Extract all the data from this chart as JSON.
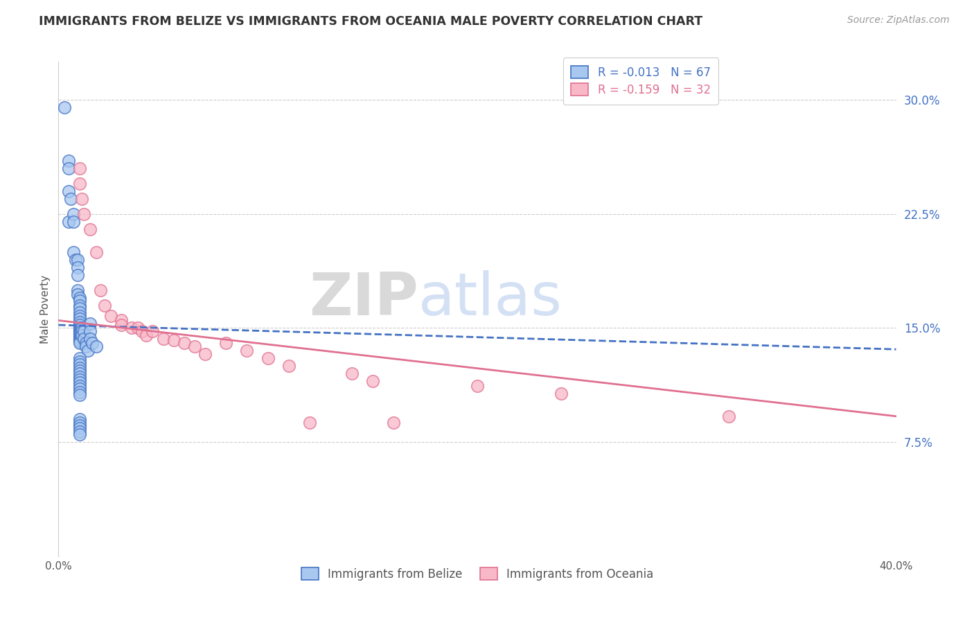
{
  "title": "IMMIGRANTS FROM BELIZE VS IMMIGRANTS FROM OCEANIA MALE POVERTY CORRELATION CHART",
  "source": "Source: ZipAtlas.com",
  "ylabel": "Male Poverty",
  "right_yticks": [
    "30.0%",
    "22.5%",
    "15.0%",
    "7.5%"
  ],
  "right_ytick_vals": [
    0.3,
    0.225,
    0.15,
    0.075
  ],
  "xlim": [
    0.0,
    0.4
  ],
  "ylim": [
    0.0,
    0.325
  ],
  "watermark_zip": "ZIP",
  "watermark_atlas": "atlas",
  "legend_belize_R": "-0.013",
  "legend_belize_N": "67",
  "legend_oceania_R": "-0.159",
  "legend_oceania_N": "32",
  "color_belize_face": "#A8C8F0",
  "color_oceania_face": "#F8B8C8",
  "color_belize_edge": "#4472C4",
  "color_oceania_edge": "#E07090",
  "color_belize_line": "#4472C4",
  "color_oceania_line": "#E07090",
  "color_ytick_right": "#4472C4",
  "color_title": "#333333",
  "color_source": "#999999",
  "belize_x": [
    0.003,
    0.005,
    0.005,
    0.005,
    0.006,
    0.005,
    0.007,
    0.007,
    0.007,
    0.008,
    0.009,
    0.009,
    0.009,
    0.009,
    0.009,
    0.01,
    0.01,
    0.01,
    0.01,
    0.01,
    0.01,
    0.01,
    0.01,
    0.01,
    0.01,
    0.01,
    0.01,
    0.01,
    0.01,
    0.01,
    0.01,
    0.01,
    0.01,
    0.01,
    0.01,
    0.011,
    0.011,
    0.011,
    0.012,
    0.012,
    0.013,
    0.013,
    0.014,
    0.015,
    0.015,
    0.015,
    0.016,
    0.018,
    0.01,
    0.01,
    0.01,
    0.01,
    0.01,
    0.01,
    0.01,
    0.01,
    0.01,
    0.01,
    0.01,
    0.01,
    0.01,
    0.01,
    0.01,
    0.01,
    0.01,
    0.01,
    0.01
  ],
  "belize_y": [
    0.295,
    0.26,
    0.255,
    0.24,
    0.235,
    0.22,
    0.225,
    0.22,
    0.2,
    0.195,
    0.195,
    0.19,
    0.185,
    0.175,
    0.172,
    0.17,
    0.168,
    0.165,
    0.163,
    0.16,
    0.158,
    0.156,
    0.154,
    0.152,
    0.15,
    0.149,
    0.148,
    0.147,
    0.146,
    0.145,
    0.144,
    0.143,
    0.142,
    0.141,
    0.14,
    0.15,
    0.148,
    0.145,
    0.148,
    0.143,
    0.14,
    0.138,
    0.135,
    0.153,
    0.148,
    0.143,
    0.14,
    0.138,
    0.13,
    0.128,
    0.126,
    0.124,
    0.122,
    0.12,
    0.118,
    0.116,
    0.114,
    0.112,
    0.11,
    0.108,
    0.106,
    0.09,
    0.088,
    0.086,
    0.084,
    0.082,
    0.08
  ],
  "oceania_x": [
    0.01,
    0.01,
    0.011,
    0.012,
    0.015,
    0.018,
    0.02,
    0.022,
    0.025,
    0.03,
    0.03,
    0.035,
    0.038,
    0.04,
    0.042,
    0.045,
    0.05,
    0.055,
    0.06,
    0.065,
    0.07,
    0.08,
    0.09,
    0.1,
    0.11,
    0.12,
    0.14,
    0.15,
    0.16,
    0.2,
    0.24,
    0.32
  ],
  "oceania_y": [
    0.255,
    0.245,
    0.235,
    0.225,
    0.215,
    0.2,
    0.175,
    0.165,
    0.158,
    0.155,
    0.152,
    0.15,
    0.15,
    0.148,
    0.145,
    0.148,
    0.143,
    0.142,
    0.14,
    0.138,
    0.133,
    0.14,
    0.135,
    0.13,
    0.125,
    0.088,
    0.12,
    0.115,
    0.088,
    0.112,
    0.107,
    0.092
  ],
  "belize_trend_x": [
    0.0,
    0.4
  ],
  "belize_trend_y": [
    0.152,
    0.136
  ],
  "oceania_trend_x": [
    0.0,
    0.4
  ],
  "oceania_trend_y": [
    0.155,
    0.092
  ]
}
